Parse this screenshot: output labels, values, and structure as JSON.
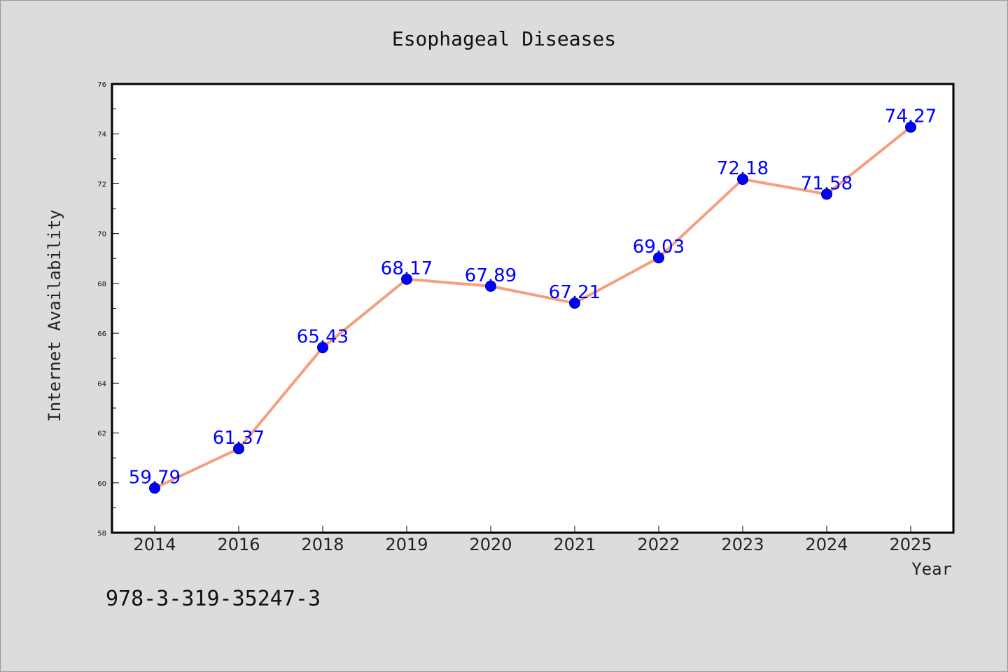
{
  "chart_data": {
    "type": "line",
    "title": "Esophageal Diseases",
    "xlabel": "Year",
    "ylabel": "Internet Availability",
    "categories": [
      "2014",
      "2016",
      "2018",
      "2019",
      "2020",
      "2021",
      "2022",
      "2023",
      "2024",
      "2025"
    ],
    "series": [
      {
        "values": [
          59.79,
          61.37,
          65.43,
          68.17,
          67.89,
          67.21,
          69.03,
          72.18,
          71.58,
          74.27
        ]
      }
    ],
    "data_labels": [
      "59.79",
      "61.37",
      "65.43",
      "68.17",
      "67.89",
      "67.21",
      "69.03",
      "72.18",
      "71.58",
      "74.27"
    ],
    "ylim": [
      58,
      76
    ],
    "yticks": [
      "58",
      "60",
      "62",
      "64",
      "66",
      "68",
      "70",
      "72",
      "74",
      "76"
    ],
    "grid": false,
    "colors": {
      "line": "#f4a07e",
      "marker": "#0000ff",
      "label": "#0000ff",
      "background": "#dcdcdc",
      "plot_background": "#ffffff"
    }
  },
  "footer": {
    "text": "978-3-319-35247-3"
  }
}
